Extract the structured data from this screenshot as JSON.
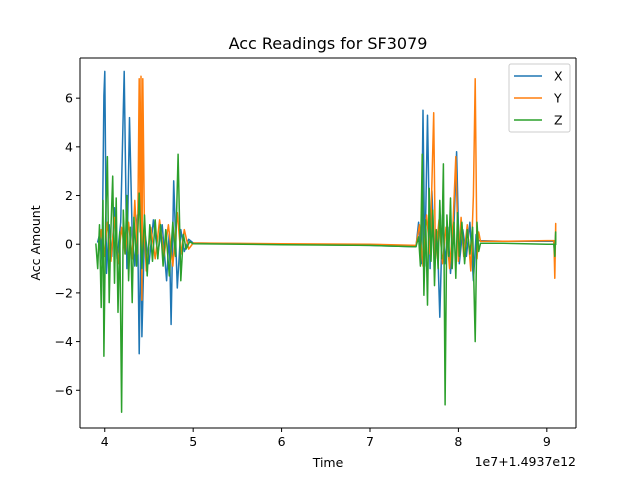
{
  "chart_data": {
    "type": "line",
    "title": "Acc Readings for SF3079",
    "xlabel": "Time",
    "ylabel": "Acc Amount",
    "x_offset_label": "1e7+1.4937e12",
    "xlim": [
      3.72,
      9.33
    ],
    "ylim": [
      -7.55,
      7.65
    ],
    "xticks": [
      4,
      5,
      6,
      7,
      8,
      9
    ],
    "xtick_labels": [
      "4",
      "5",
      "6",
      "7",
      "8",
      "9"
    ],
    "yticks": [
      -6,
      -4,
      -2,
      0,
      2,
      4,
      6
    ],
    "ytick_labels": [
      "−6",
      "−4",
      "−2",
      "0",
      "2",
      "4",
      "6"
    ],
    "grid": false,
    "legend_position": "top-right",
    "series": [
      {
        "name": "X",
        "color": "#1f77b4",
        "points": [
          [
            3.92,
            0.1
          ],
          [
            3.95,
            0.5
          ],
          [
            3.97,
            -0.8
          ],
          [
            3.99,
            6.1
          ],
          [
            4.0,
            7.1
          ],
          [
            4.02,
            -1.2
          ],
          [
            4.05,
            0.8
          ],
          [
            4.08,
            -0.5
          ],
          [
            4.11,
            1.5
          ],
          [
            4.14,
            -0.6
          ],
          [
            4.18,
            0.9
          ],
          [
            4.22,
            7.1
          ],
          [
            4.25,
            -1.0
          ],
          [
            4.28,
            5.2
          ],
          [
            4.31,
            0.4
          ],
          [
            4.34,
            -0.9
          ],
          [
            4.37,
            1.2
          ],
          [
            4.39,
            -4.5
          ],
          [
            4.41,
            0.8
          ],
          [
            4.42,
            -3.8
          ],
          [
            4.45,
            0.6
          ],
          [
            4.5,
            -0.8
          ],
          [
            4.55,
            1.0
          ],
          [
            4.6,
            -0.4
          ],
          [
            4.65,
            0.8
          ],
          [
            4.7,
            -1.5
          ],
          [
            4.73,
            0.5
          ],
          [
            4.75,
            -3.3
          ],
          [
            4.78,
            2.6
          ],
          [
            4.82,
            -1.8
          ],
          [
            4.86,
            0.6
          ],
          [
            4.9,
            -0.3
          ],
          [
            4.95,
            0.2
          ],
          [
            5.0,
            0.05
          ],
          [
            6.0,
            0.0
          ],
          [
            7.0,
            -0.05
          ],
          [
            7.52,
            -0.1
          ],
          [
            7.55,
            0.9
          ],
          [
            7.58,
            -0.8
          ],
          [
            7.6,
            5.5
          ],
          [
            7.62,
            -0.9
          ],
          [
            7.65,
            5.3
          ],
          [
            7.68,
            -1.0
          ],
          [
            7.7,
            2.2
          ],
          [
            7.73,
            -0.6
          ],
          [
            7.76,
            0.5
          ],
          [
            7.79,
            -3.0
          ],
          [
            7.82,
            1.2
          ],
          [
            7.85,
            -0.8
          ],
          [
            7.88,
            0.7
          ],
          [
            7.91,
            -1.2
          ],
          [
            7.95,
            0.8
          ],
          [
            7.98,
            3.8
          ],
          [
            8.01,
            -0.8
          ],
          [
            8.05,
            0.6
          ],
          [
            8.09,
            -0.5
          ],
          [
            8.13,
            0.9
          ],
          [
            8.17,
            -1.5
          ],
          [
            8.2,
            0.4
          ],
          [
            8.23,
            0.15
          ],
          [
            8.5,
            0.12
          ],
          [
            9.0,
            0.12
          ],
          [
            9.08,
            0.12
          ],
          [
            9.09,
            -0.6
          ],
          [
            9.1,
            0.5
          ],
          [
            9.1,
            0.1
          ]
        ]
      },
      {
        "name": "Y",
        "color": "#ff7f0e",
        "points": [
          [
            3.93,
            -0.2
          ],
          [
            3.96,
            0.6
          ],
          [
            3.99,
            -0.5
          ],
          [
            4.03,
            0.9
          ],
          [
            4.07,
            -0.7
          ],
          [
            4.11,
            1.1
          ],
          [
            4.15,
            -0.8
          ],
          [
            4.19,
            0.7
          ],
          [
            4.23,
            -0.4
          ],
          [
            4.27,
            0.9
          ],
          [
            4.31,
            -0.6
          ],
          [
            4.34,
            1.8
          ],
          [
            4.37,
            -0.4
          ],
          [
            4.39,
            6.8
          ],
          [
            4.4,
            0.5
          ],
          [
            4.41,
            6.9
          ],
          [
            4.42,
            -2.3
          ],
          [
            4.43,
            6.8
          ],
          [
            4.45,
            0.4
          ],
          [
            4.47,
            -1.1
          ],
          [
            4.52,
            0.7
          ],
          [
            4.57,
            -0.6
          ],
          [
            4.62,
            1.0
          ],
          [
            4.67,
            -0.5
          ],
          [
            4.72,
            0.8
          ],
          [
            4.77,
            -0.9
          ],
          [
            4.82,
            1.3
          ],
          [
            4.86,
            -0.4
          ],
          [
            4.9,
            0.6
          ],
          [
            4.95,
            -0.2
          ],
          [
            5.0,
            0.05
          ],
          [
            6.0,
            0.02
          ],
          [
            7.0,
            0.0
          ],
          [
            7.52,
            -0.05
          ],
          [
            7.56,
            0.8
          ],
          [
            7.6,
            -0.9
          ],
          [
            7.64,
            1.2
          ],
          [
            7.68,
            -0.4
          ],
          [
            7.72,
            5.4
          ],
          [
            7.74,
            -0.6
          ],
          [
            7.78,
            1.0
          ],
          [
            7.82,
            -0.8
          ],
          [
            7.86,
            0.7
          ],
          [
            7.9,
            -1.0
          ],
          [
            7.94,
            0.9
          ],
          [
            7.97,
            3.6
          ],
          [
            8.0,
            -0.7
          ],
          [
            8.03,
            1.1
          ],
          [
            8.06,
            -0.5
          ],
          [
            8.1,
            0.8
          ],
          [
            8.14,
            -1.1
          ],
          [
            8.17,
            2.0
          ],
          [
            8.19,
            6.8
          ],
          [
            8.21,
            -0.6
          ],
          [
            8.23,
            0.5
          ],
          [
            8.25,
            0.12
          ],
          [
            8.5,
            0.12
          ],
          [
            9.0,
            0.15
          ],
          [
            9.08,
            0.15
          ],
          [
            9.09,
            -1.4
          ],
          [
            9.1,
            0.85
          ],
          [
            9.1,
            0.1
          ]
        ]
      },
      {
        "name": "Z",
        "color": "#2ca02c",
        "points": [
          [
            3.9,
            0.0
          ],
          [
            3.92,
            -1.0
          ],
          [
            3.94,
            0.8
          ],
          [
            3.96,
            -2.6
          ],
          [
            3.98,
            1.8
          ],
          [
            3.99,
            -4.6
          ],
          [
            4.01,
            0.9
          ],
          [
            4.03,
            3.6
          ],
          [
            4.05,
            -2.4
          ],
          [
            4.07,
            0.6
          ],
          [
            4.09,
            2.8
          ],
          [
            4.11,
            -1.6
          ],
          [
            4.13,
            1.9
          ],
          [
            4.15,
            -2.8
          ],
          [
            4.17,
            0.5
          ],
          [
            4.19,
            -6.9
          ],
          [
            4.21,
            1.4
          ],
          [
            4.23,
            -0.4
          ],
          [
            4.25,
            2.0
          ],
          [
            4.27,
            -1.5
          ],
          [
            4.29,
            0.7
          ],
          [
            4.31,
            -2.4
          ],
          [
            4.33,
            1.1
          ],
          [
            4.36,
            -0.9
          ],
          [
            4.39,
            2.1
          ],
          [
            4.42,
            -1.0
          ],
          [
            4.45,
            1.2
          ],
          [
            4.48,
            -1.3
          ],
          [
            4.51,
            0.8
          ],
          [
            4.54,
            -0.7
          ],
          [
            4.57,
            1.0
          ],
          [
            4.6,
            -0.6
          ],
          [
            4.63,
            0.8
          ],
          [
            4.66,
            -0.9
          ],
          [
            4.69,
            0.6
          ],
          [
            4.73,
            -1.3
          ],
          [
            4.77,
            0.9
          ],
          [
            4.8,
            -0.5
          ],
          [
            4.83,
            3.7
          ],
          [
            4.86,
            -1.5
          ],
          [
            4.89,
            0.4
          ],
          [
            4.92,
            -0.2
          ],
          [
            4.96,
            0.1
          ],
          [
            5.0,
            0.02
          ],
          [
            6.0,
            -0.02
          ],
          [
            7.0,
            -0.05
          ],
          [
            7.52,
            -0.1
          ],
          [
            7.55,
            0.3
          ],
          [
            7.57,
            -0.9
          ],
          [
            7.59,
            3.7
          ],
          [
            7.61,
            -2.1
          ],
          [
            7.63,
            1.0
          ],
          [
            7.65,
            -2.5
          ],
          [
            7.67,
            2.3
          ],
          [
            7.69,
            -0.7
          ],
          [
            7.71,
            1.4
          ],
          [
            7.73,
            -1.7
          ],
          [
            7.75,
            0.6
          ],
          [
            7.77,
            -1.0
          ],
          [
            7.79,
            1.8
          ],
          [
            7.81,
            -0.6
          ],
          [
            7.83,
            3.3
          ],
          [
            7.85,
            -6.6
          ],
          [
            7.87,
            1.2
          ],
          [
            7.89,
            -0.5
          ],
          [
            7.91,
            1.9
          ],
          [
            7.93,
            -1.0
          ],
          [
            7.95,
            0.9
          ],
          [
            7.97,
            -1.4
          ],
          [
            7.99,
            1.3
          ],
          [
            8.01,
            -0.5
          ],
          [
            8.04,
            0.9
          ],
          [
            8.07,
            -0.8
          ],
          [
            8.1,
            0.6
          ],
          [
            8.13,
            -0.4
          ],
          [
            8.16,
            0.7
          ],
          [
            8.19,
            -4.0
          ],
          [
            8.21,
            0.9
          ],
          [
            8.23,
            -0.3
          ],
          [
            8.25,
            0.04
          ],
          [
            8.5,
            0.04
          ],
          [
            9.0,
            0.0
          ],
          [
            9.08,
            0.0
          ],
          [
            9.09,
            -0.5
          ],
          [
            9.1,
            0.5
          ],
          [
            9.1,
            0.0
          ]
        ]
      }
    ]
  }
}
